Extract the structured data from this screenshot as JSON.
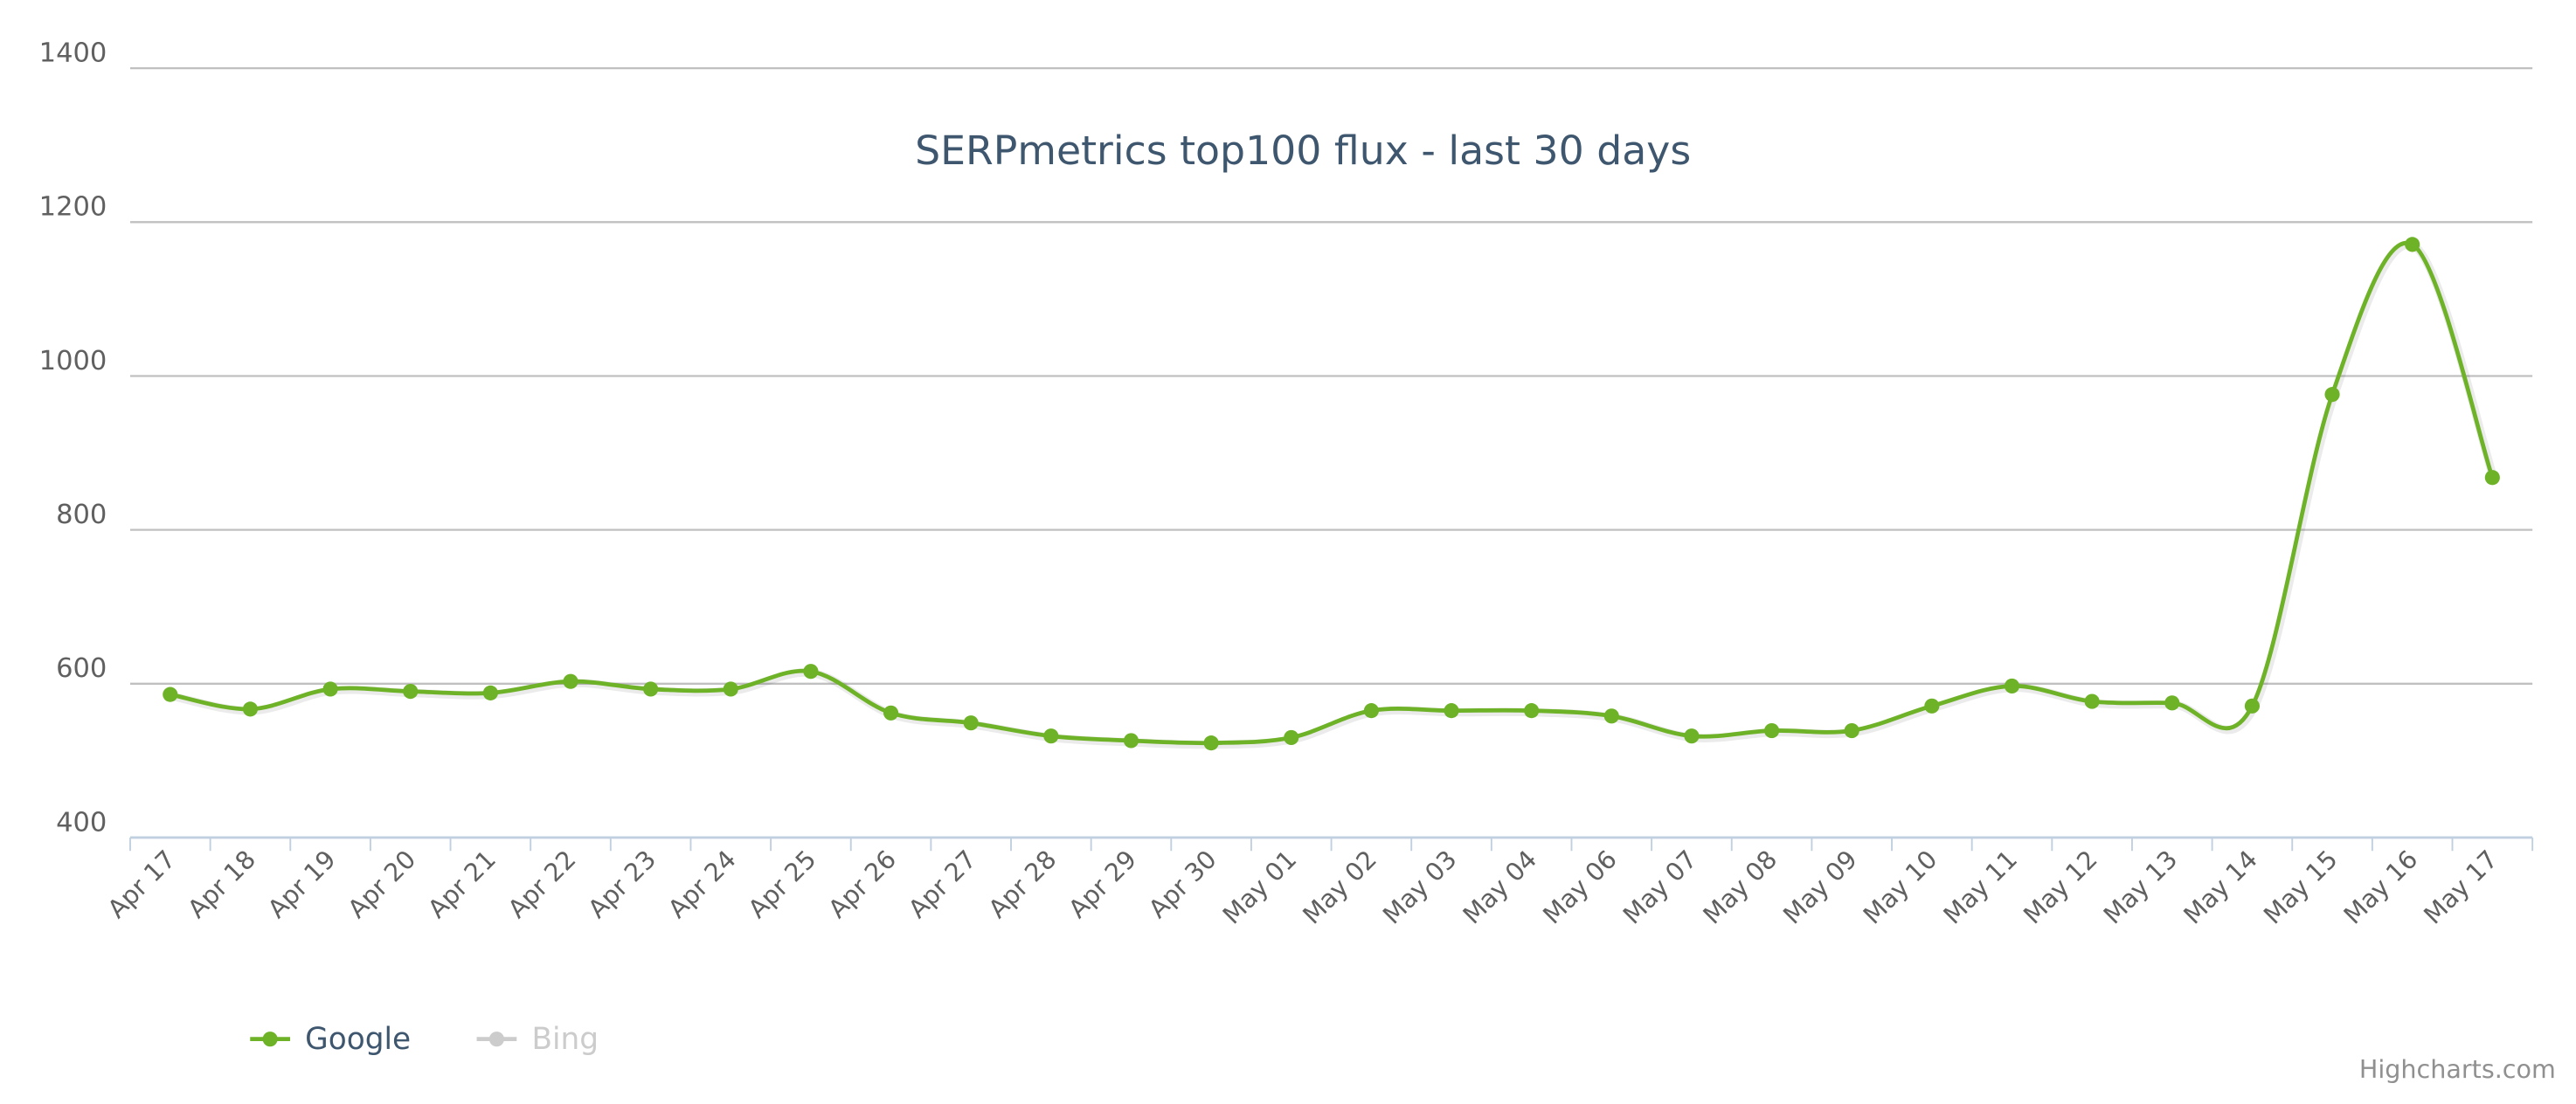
{
  "chart_data": {
    "type": "line",
    "title": "SERPmetrics top100 flux - last 30 days",
    "categories": [
      "Apr 17",
      "Apr 18",
      "Apr 19",
      "Apr 20",
      "Apr 21",
      "Apr 22",
      "Apr 23",
      "Apr 24",
      "Apr 25",
      "Apr 26",
      "Apr 27",
      "Apr 28",
      "Apr 29",
      "Apr 30",
      "May 01",
      "May 02",
      "May 03",
      "May 04",
      "May 06",
      "May 07",
      "May 08",
      "May 09",
      "May 10",
      "May 11",
      "May 12",
      "May 13",
      "May 14",
      "May 15",
      "May 16",
      "May 17"
    ],
    "series": [
      {
        "name": "Google",
        "color": "#6eb228",
        "values": [
          586,
          567,
          593,
          590,
          588,
          603,
          593,
          593,
          616,
          562,
          549,
          532,
          526,
          523,
          530,
          565,
          565,
          565,
          558,
          532,
          539,
          539,
          571,
          597,
          577,
          575,
          571,
          976,
          1171,
          868
        ]
      },
      {
        "name": "Bing",
        "color": "#cccccc",
        "visible": false,
        "values": [
          null,
          null,
          null,
          null,
          null,
          null,
          null,
          null,
          null,
          null,
          null,
          null,
          null,
          null,
          null,
          null,
          null,
          null,
          null,
          null,
          null,
          null,
          null,
          null,
          null,
          null,
          null,
          null,
          null,
          null
        ]
      }
    ],
    "ylim": [
      400,
      1400
    ],
    "yticks": [
      400,
      600,
      800,
      1000,
      1200,
      1400
    ],
    "grid": true,
    "legend": "bottom-left",
    "credits": "Highcharts.com"
  }
}
